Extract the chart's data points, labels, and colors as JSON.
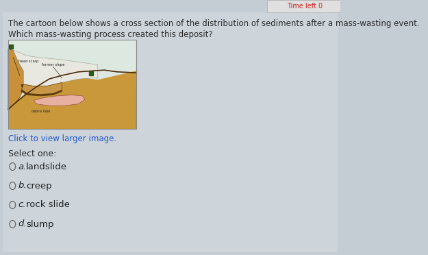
{
  "bg_color": "#c5cdd4",
  "header_text_line1": "The cartoon below shows a cross section of the distribution of sediments after a mass-wasting event.",
  "header_text_line2": "Which mass-wasting process created this deposit?",
  "click_text": "Click to view larger image.",
  "select_text": "Select one:",
  "options": [
    {
      "letter": "a.",
      "text": "landslide"
    },
    {
      "letter": "b.",
      "text": "creep"
    },
    {
      "letter": "c.",
      "text": "rock slide"
    },
    {
      "letter": "d.",
      "text": "slump"
    }
  ],
  "header_fontsize": 8.5,
  "option_fontsize": 9.5,
  "select_fontsize": 9.0,
  "click_fontsize": 8.5,
  "text_color": "#2a2a2a",
  "link_color": "#2255cc",
  "option_text_color": "#222222",
  "circle_color": "#666666",
  "top_right_text": "Time left 0",
  "top_right_color": "#cc2222",
  "top_right_bg": "#e8e8e8"
}
